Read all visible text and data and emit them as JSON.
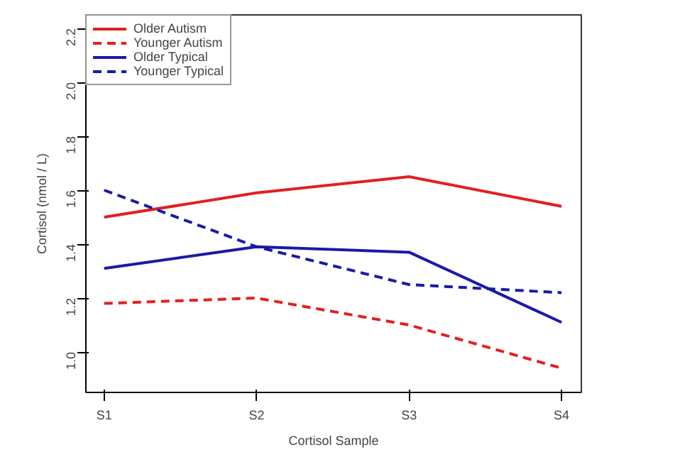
{
  "chart_data": {
    "type": "line",
    "xlabel": "Cortisol Sample",
    "ylabel": "Cortisol (nmol / L)",
    "categories": [
      "S1",
      "S2",
      "S3",
      "S4"
    ],
    "series": [
      {
        "name": "Older Autism",
        "color": "#e02020",
        "line_style": "solid",
        "values": [
          1.5,
          1.59,
          1.65,
          1.54
        ]
      },
      {
        "name": "Younger Autism",
        "color": "#e02020",
        "line_style": "dashed",
        "values": [
          1.18,
          1.2,
          1.1,
          0.94
        ]
      },
      {
        "name": "Older Typical",
        "color": "#1a1aa8",
        "line_style": "solid",
        "values": [
          1.31,
          1.39,
          1.37,
          1.11
        ]
      },
      {
        "name": "Younger Typical",
        "color": "#1a1aa8",
        "line_style": "dashed",
        "values": [
          1.6,
          1.39,
          1.25,
          1.22
        ]
      }
    ],
    "ylim": [
      0.85,
      2.25
    ],
    "yticks": [
      {
        "value": 1.0,
        "label": "1.0"
      },
      {
        "value": 1.2,
        "label": "1.2"
      },
      {
        "value": 1.4,
        "label": "1.4"
      },
      {
        "value": 1.6,
        "label": "1.6"
      },
      {
        "value": 1.8,
        "label": "1.8"
      },
      {
        "value": 2.0,
        "label": "2.0"
      },
      {
        "value": 2.2,
        "label": "2.2"
      }
    ],
    "grid": false,
    "legend": "top left",
    "marker": "none"
  }
}
